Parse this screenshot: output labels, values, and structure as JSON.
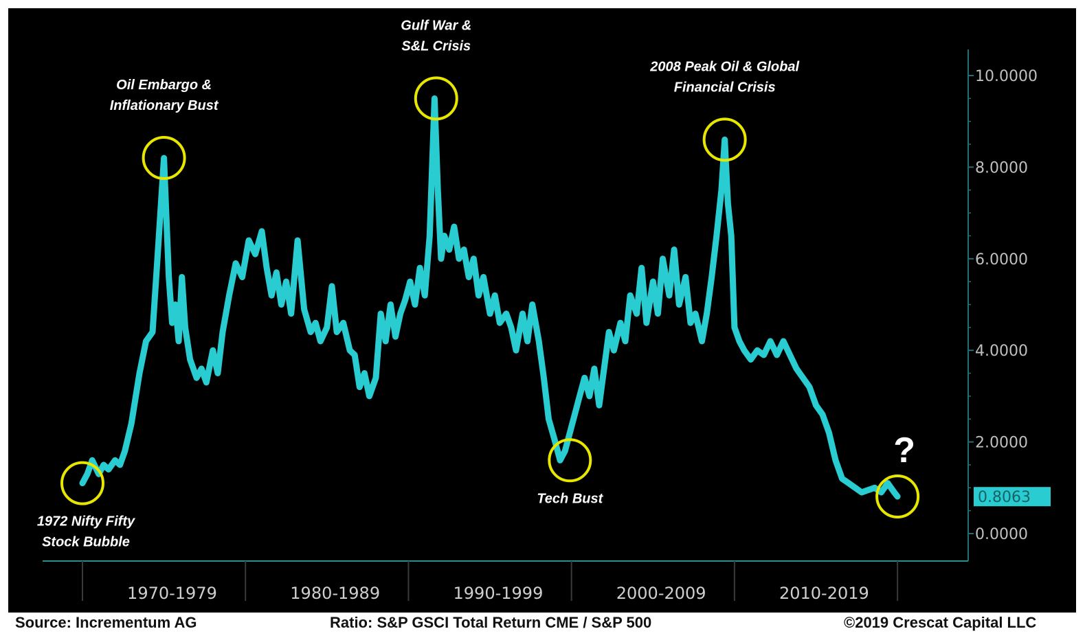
{
  "chart_data": {
    "type": "line",
    "y_tick_labels": [
      "10.0000",
      "8.0000",
      "6.0000",
      "4.0000",
      "2.0000",
      "0.0000"
    ],
    "y_ticks": [
      10,
      8,
      6,
      4,
      2,
      0
    ],
    "ylim": [
      -0.6,
      10.6
    ],
    "xlim": [
      1969,
      2019.5
    ],
    "x_category_labels": [
      "1970-1979",
      "1980-1989",
      "1990-1999",
      "2000-2009",
      "2010-2019"
    ],
    "x_category_centers": [
      1974.5,
      1984.5,
      1994.5,
      2004.5,
      2014.5
    ],
    "x_dividers": [
      1969,
      1979,
      1989,
      1999,
      2009,
      2019
    ],
    "y_axis_position": "right",
    "grid": false,
    "line_color": "#29cdd1",
    "highlight_color": "#e6e600",
    "last_value": 0.8063,
    "last_value_label": "0.8063",
    "series": [
      {
        "x": [
          1969.0,
          1969.3,
          1969.6,
          1970.0,
          1970.3,
          1970.6,
          1971.0,
          1971.3,
          1971.6,
          1972.0,
          1972.5,
          1972.9,
          1973.3,
          1973.6,
          1974.0,
          1974.3,
          1974.5,
          1974.7,
          1974.9,
          1975.1,
          1975.3,
          1975.6,
          1976.0,
          1976.3,
          1976.6,
          1977.0,
          1977.3,
          1977.6,
          1978.0,
          1978.4,
          1978.8,
          1979.2,
          1979.6,
          1980.0,
          1980.3,
          1980.6,
          1980.9,
          1981.2,
          1981.5,
          1981.8,
          1982.2,
          1982.6,
          1983.0,
          1983.3,
          1983.6,
          1984.0,
          1984.3,
          1984.6,
          1985.0,
          1985.4,
          1985.7,
          1986.0,
          1986.3,
          1986.6,
          1987.0,
          1987.3,
          1987.6,
          1987.9,
          1988.2,
          1988.5,
          1988.8,
          1989.1,
          1989.4,
          1989.7,
          1990.0,
          1990.3,
          1990.6,
          1990.8,
          1991.0,
          1991.2,
          1991.5,
          1991.8,
          1992.1,
          1992.4,
          1992.7,
          1993.0,
          1993.3,
          1993.6,
          1994.0,
          1994.3,
          1994.6,
          1995.0,
          1995.3,
          1995.6,
          1996.0,
          1996.3,
          1996.6,
          1997.0,
          1997.3,
          1997.6,
          1998.0,
          1998.3,
          1998.6,
          1998.9,
          1999.2,
          1999.5,
          1999.8,
          2000.1,
          2000.4,
          2000.7,
          2001.0,
          2001.3,
          2001.6,
          2002.0,
          2002.3,
          2002.6,
          2003.0,
          2003.3,
          2003.6,
          2004.0,
          2004.3,
          2004.6,
          2005.0,
          2005.3,
          2005.6,
          2006.0,
          2006.3,
          2006.6,
          2007.0,
          2007.3,
          2007.6,
          2007.9,
          2008.2,
          2008.4,
          2008.6,
          2008.8,
          2009.0,
          2009.3,
          2009.6,
          2010.0,
          2010.4,
          2010.8,
          2011.2,
          2011.6,
          2012.0,
          2012.4,
          2012.8,
          2013.2,
          2013.6,
          2014.0,
          2014.4,
          2014.8,
          2015.2,
          2015.6,
          2016.0,
          2016.4,
          2016.8,
          2017.2,
          2017.6,
          2018.0,
          2018.4,
          2018.8,
          2019.0
        ],
        "y": [
          1.1,
          1.3,
          1.6,
          1.3,
          1.5,
          1.4,
          1.6,
          1.5,
          1.8,
          2.4,
          3.5,
          4.2,
          4.4,
          6.0,
          8.2,
          5.6,
          4.6,
          5.0,
          4.2,
          5.6,
          4.5,
          3.8,
          3.4,
          3.6,
          3.3,
          4.0,
          3.5,
          4.4,
          5.2,
          5.9,
          5.6,
          6.4,
          6.1,
          6.6,
          5.8,
          5.2,
          5.7,
          5.0,
          5.5,
          4.8,
          6.4,
          4.9,
          4.4,
          4.6,
          4.2,
          4.5,
          5.4,
          4.4,
          4.6,
          4.0,
          3.9,
          3.2,
          3.5,
          3.0,
          3.4,
          4.8,
          4.2,
          5.0,
          4.3,
          4.8,
          5.1,
          5.5,
          5.0,
          5.8,
          5.2,
          6.5,
          9.5,
          7.5,
          6.0,
          6.5,
          6.2,
          6.7,
          6.0,
          6.2,
          5.6,
          6.0,
          5.2,
          5.6,
          4.8,
          5.2,
          4.6,
          4.8,
          4.5,
          4.0,
          4.8,
          4.2,
          5.0,
          4.2,
          3.4,
          2.5,
          2.0,
          1.6,
          1.8,
          2.2,
          2.6,
          3.0,
          3.4,
          3.0,
          3.6,
          2.8,
          3.6,
          4.4,
          4.0,
          4.6,
          4.2,
          5.2,
          4.8,
          5.8,
          4.6,
          5.5,
          4.8,
          6.0,
          5.2,
          6.2,
          5.0,
          5.6,
          4.6,
          4.8,
          4.2,
          4.8,
          5.6,
          6.5,
          7.5,
          8.6,
          7.2,
          6.5,
          4.5,
          4.2,
          4.0,
          3.8,
          4.0,
          3.9,
          4.2,
          3.9,
          4.2,
          3.9,
          3.6,
          3.4,
          3.2,
          2.8,
          2.6,
          2.2,
          1.6,
          1.2,
          1.1,
          1.0,
          0.9,
          0.95,
          1.0,
          0.9,
          1.1,
          0.9,
          0.81
        ]
      }
    ],
    "annotations": [
      {
        "lines": [
          "Oil Embargo &",
          "Inflationary Bust"
        ],
        "x": 1974.0,
        "y": 8.2
      },
      {
        "lines": [
          "Gulf War &",
          "S&L Crisis"
        ],
        "x": 1990.7,
        "y": 9.5
      },
      {
        "lines": [
          "2008 Peak Oil & Global",
          "Financial Crisis"
        ],
        "x": 2008.4,
        "y": 8.6
      },
      {
        "lines": [
          "1972 Nifty Fifty",
          "Stock Bubble"
        ],
        "x": 1969.0,
        "y": 1.1
      },
      {
        "lines": [
          "Tech Bust"
        ],
        "x": 1998.9,
        "y": 1.6
      },
      {
        "lines": [
          "?"
        ],
        "x": 2019.0,
        "y": 0.81
      }
    ]
  },
  "footer": {
    "source": "Source: Incrementum AG",
    "ratio": "Ratio: S&P GSCI Total Return CME / S&P 500",
    "copyright": "©2019 Crescat Capital LLC"
  }
}
